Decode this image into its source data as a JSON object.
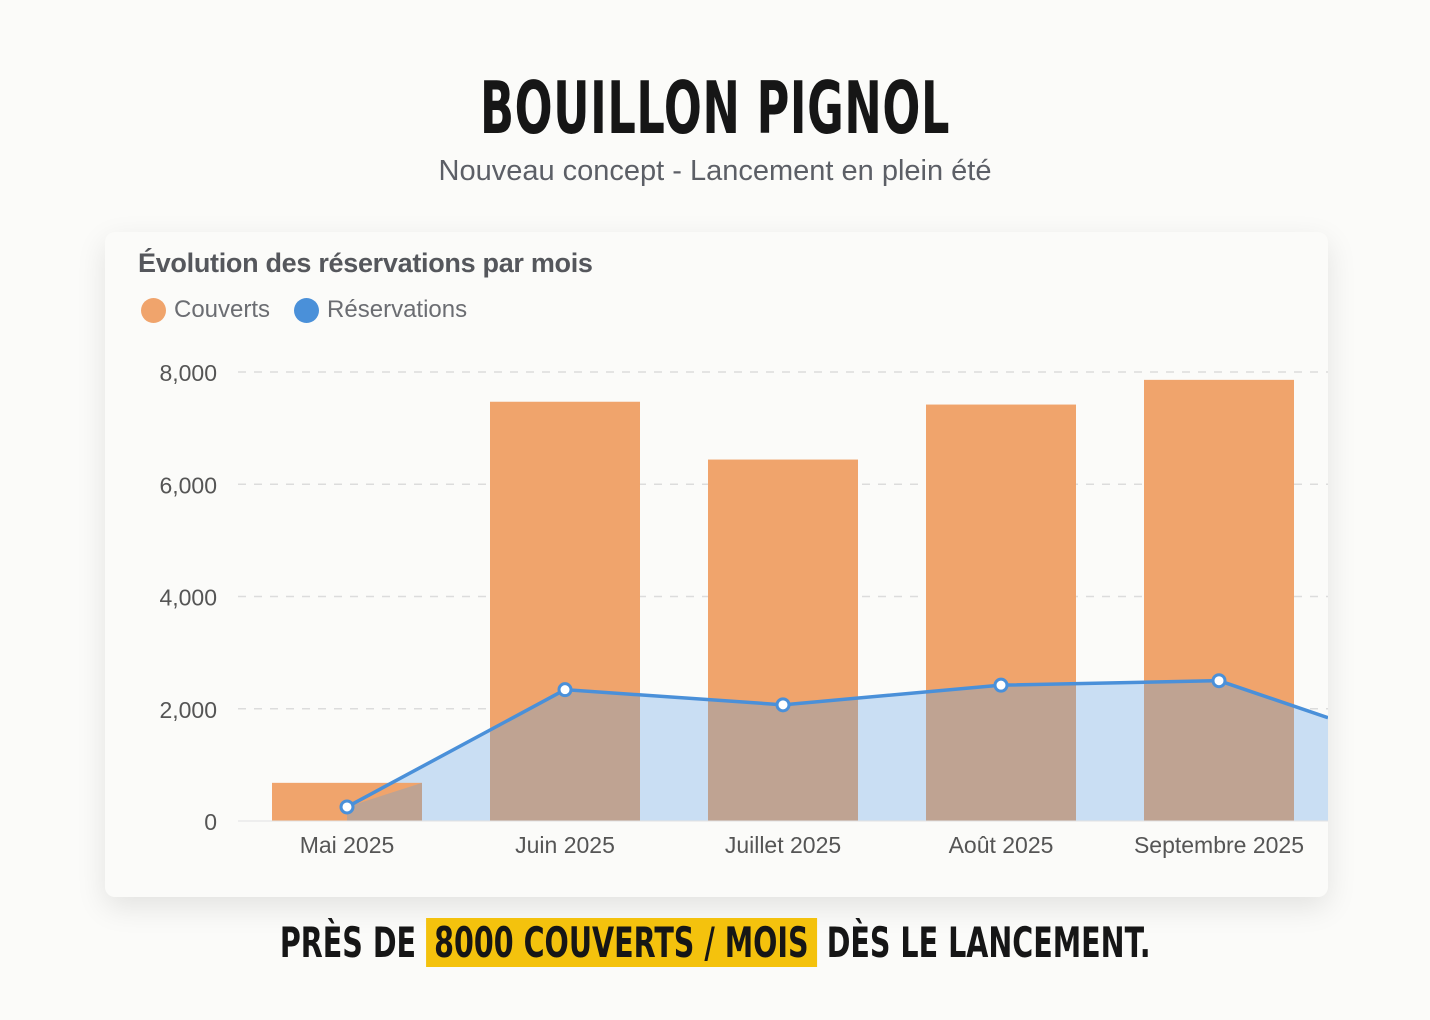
{
  "header": {
    "title": "BOUILLON PIGNOL",
    "subtitle": "Nouveau concept - Lancement en plein été"
  },
  "caption": {
    "before": "PRÈS DE",
    "highlight": "8000 COUVERTS / MOIS",
    "after": "DÈS LE LANCEMENT.",
    "highlight_color": "#f4c20d"
  },
  "chart_data": {
    "type": "bar",
    "title": "Évolution des réservations par mois",
    "categories": [
      "Mai 2025",
      "Juin 2025",
      "Juillet 2025",
      "Août 2025",
      "Septembre 2025"
    ],
    "series": [
      {
        "name": "Couverts",
        "type": "bar",
        "color": "#f0a46c",
        "values": [
          680,
          7470,
          6440,
          7420,
          7860
        ]
      },
      {
        "name": "Réservations",
        "type": "area-line",
        "color": "#4a90d9",
        "values": [
          250,
          2340,
          2070,
          2420,
          2500
        ]
      }
    ],
    "ylim": [
      0,
      8000
    ],
    "yticks": [
      "0",
      "2,000",
      "4,000",
      "6,000",
      "8,000"
    ],
    "yticks_values": [
      0,
      2000,
      4000,
      6000,
      8000
    ],
    "grid": true,
    "legend": "top-left"
  }
}
